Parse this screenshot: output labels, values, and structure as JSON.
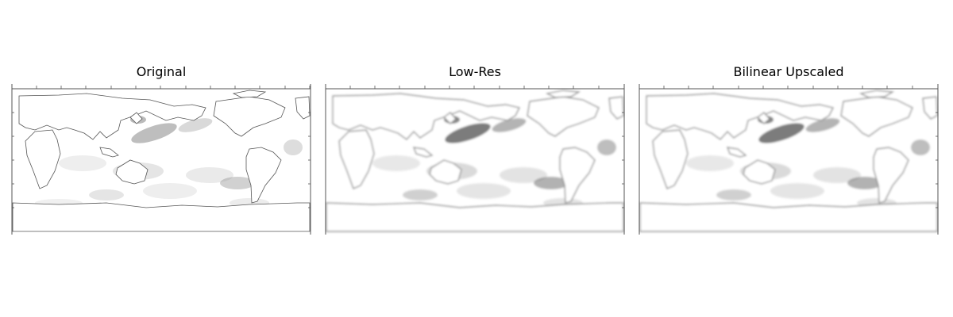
{
  "figure": {
    "panels": [
      {
        "title": "Original",
        "rendering": "sharp"
      },
      {
        "title": "Low-Res",
        "rendering": "blurred"
      },
      {
        "title": "Bilinear Upscaled",
        "rendering": "blurred"
      }
    ],
    "colormap": "grayscale (white low, black high)",
    "image_content": "global ocean field map with continent outlines, Pacific-centered"
  }
}
